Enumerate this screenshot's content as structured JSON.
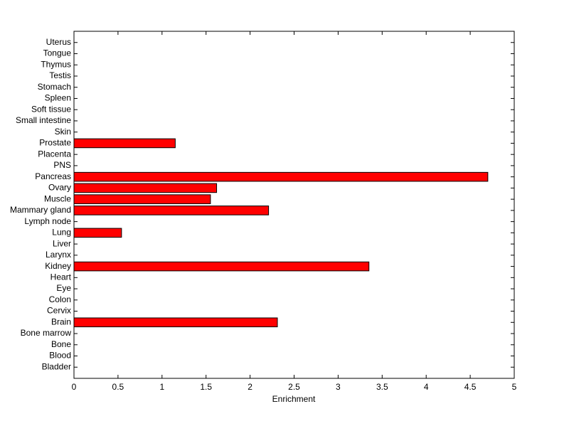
{
  "chart_data": {
    "type": "barh",
    "categories": [
      "Bladder",
      "Blood",
      "Bone",
      "Bone marrow",
      "Brain",
      "Cervix",
      "Colon",
      "Eye",
      "Heart",
      "Kidney",
      "Larynx",
      "Liver",
      "Lung",
      "Lymph node",
      "Mammary gland",
      "Muscle",
      "Ovary",
      "Pancreas",
      "PNS",
      "Placenta",
      "Prostate",
      "Skin",
      "Small intestine",
      "Soft tissue",
      "Spleen",
      "Stomach",
      "Testis",
      "Thymus",
      "Tongue",
      "Uterus"
    ],
    "values": [
      0,
      0,
      0,
      0,
      2.31,
      0,
      0,
      0,
      0,
      3.35,
      0,
      0,
      0.54,
      0,
      2.21,
      1.55,
      1.62,
      4.7,
      0,
      0,
      1.15,
      0,
      0,
      0,
      0,
      0,
      0,
      0,
      0,
      0
    ],
    "color": "#ff0000",
    "x_label": "Enrichment",
    "xlim": [
      0,
      5
    ],
    "xticks": [
      0,
      0.5,
      1,
      1.5,
      2,
      2.5,
      3,
      3.5,
      4,
      4.5,
      5
    ]
  }
}
